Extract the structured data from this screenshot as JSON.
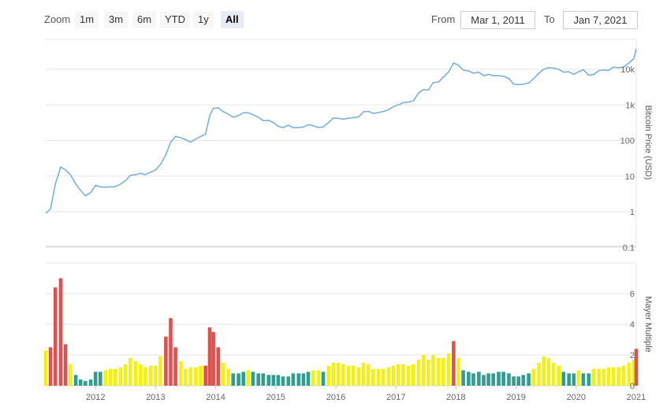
{
  "toolbar": {
    "zoom_label": "Zoom",
    "zoom_buttons": [
      "1m",
      "3m",
      "6m",
      "YTD",
      "1y",
      "All"
    ],
    "active_zoom": "All",
    "from_label": "From",
    "from_value": "Mar 1, 2011",
    "to_label": "To",
    "to_value": "Jan 7, 2021"
  },
  "colors": {
    "price_line": "#7cb0dc",
    "bar_red": "#d9534f",
    "bar_yellow": "#f4f10f",
    "bar_teal": "#2f9d8f",
    "grid": "#e6e6e6"
  },
  "chart_data": [
    {
      "type": "line",
      "ylabel": "Bitcoin Price (USD)",
      "yscale": "log",
      "y_ticks": [
        "0.1",
        "1",
        "10",
        "100",
        "1k",
        "10k"
      ],
      "ylim": [
        0.08,
        45000
      ],
      "xlim": [
        2011.17,
        2021.0
      ],
      "x_ticks": [
        "2012",
        "2013",
        "2014",
        "2015",
        "2016",
        "2017",
        "2018",
        "2019",
        "2020",
        "2021"
      ],
      "series": [
        {
          "points": [
            [
              2011.17,
              0.9
            ],
            [
              2011.25,
              1.2
            ],
            [
              2011.33,
              6
            ],
            [
              2011.42,
              18
            ],
            [
              2011.5,
              15
            ],
            [
              2011.58,
              11
            ],
            [
              2011.67,
              6
            ],
            [
              2011.75,
              4
            ],
            [
              2011.83,
              2.8
            ],
            [
              2011.92,
              3.5
            ],
            [
              2012.0,
              5.5
            ],
            [
              2012.08,
              5
            ],
            [
              2012.17,
              4.9
            ],
            [
              2012.25,
              5
            ],
            [
              2012.33,
              5.1
            ],
            [
              2012.42,
              6
            ],
            [
              2012.5,
              7.5
            ],
            [
              2012.58,
              10.5
            ],
            [
              2012.67,
              11
            ],
            [
              2012.75,
              12
            ],
            [
              2012.83,
              11
            ],
            [
              2012.92,
              13
            ],
            [
              2013.0,
              15
            ],
            [
              2013.08,
              21
            ],
            [
              2013.17,
              40
            ],
            [
              2013.25,
              90
            ],
            [
              2013.33,
              130
            ],
            [
              2013.42,
              120
            ],
            [
              2013.5,
              105
            ],
            [
              2013.58,
              90
            ],
            [
              2013.67,
              110
            ],
            [
              2013.75,
              130
            ],
            [
              2013.83,
              150
            ],
            [
              2013.9,
              500
            ],
            [
              2013.96,
              800
            ],
            [
              2014.04,
              830
            ],
            [
              2014.12,
              650
            ],
            [
              2014.21,
              550
            ],
            [
              2014.29,
              450
            ],
            [
              2014.38,
              500
            ],
            [
              2014.46,
              600
            ],
            [
              2014.54,
              600
            ],
            [
              2014.62,
              530
            ],
            [
              2014.71,
              450
            ],
            [
              2014.79,
              360
            ],
            [
              2014.88,
              370
            ],
            [
              2014.96,
              320
            ],
            [
              2015.04,
              250
            ],
            [
              2015.12,
              230
            ],
            [
              2015.21,
              270
            ],
            [
              2015.29,
              230
            ],
            [
              2015.38,
              230
            ],
            [
              2015.46,
              240
            ],
            [
              2015.54,
              280
            ],
            [
              2015.62,
              260
            ],
            [
              2015.71,
              230
            ],
            [
              2015.79,
              240
            ],
            [
              2015.88,
              320
            ],
            [
              2015.96,
              430
            ],
            [
              2016.04,
              420
            ],
            [
              2016.12,
              400
            ],
            [
              2016.21,
              420
            ],
            [
              2016.29,
              440
            ],
            [
              2016.38,
              460
            ],
            [
              2016.46,
              640
            ],
            [
              2016.54,
              660
            ],
            [
              2016.62,
              580
            ],
            [
              2016.71,
              610
            ],
            [
              2016.79,
              650
            ],
            [
              2016.88,
              740
            ],
            [
              2016.96,
              900
            ],
            [
              2017.04,
              1000
            ],
            [
              2017.12,
              1150
            ],
            [
              2017.21,
              1200
            ],
            [
              2017.29,
              1300
            ],
            [
              2017.38,
              2200
            ],
            [
              2017.46,
              2700
            ],
            [
              2017.54,
              2600
            ],
            [
              2017.62,
              4200
            ],
            [
              2017.71,
              4400
            ],
            [
              2017.79,
              6000
            ],
            [
              2017.88,
              8500
            ],
            [
              2017.96,
              15000
            ],
            [
              2018.04,
              13000
            ],
            [
              2018.12,
              9500
            ],
            [
              2018.21,
              9000
            ],
            [
              2018.29,
              7800
            ],
            [
              2018.38,
              8300
            ],
            [
              2018.46,
              6600
            ],
            [
              2018.54,
              7200
            ],
            [
              2018.62,
              6600
            ],
            [
              2018.71,
              6600
            ],
            [
              2018.79,
              6400
            ],
            [
              2018.88,
              5500
            ],
            [
              2018.96,
              3800
            ],
            [
              2019.04,
              3700
            ],
            [
              2019.12,
              3800
            ],
            [
              2019.21,
              4100
            ],
            [
              2019.29,
              5400
            ],
            [
              2019.38,
              7800
            ],
            [
              2019.46,
              10000
            ],
            [
              2019.54,
              11000
            ],
            [
              2019.62,
              10800
            ],
            [
              2019.71,
              10000
            ],
            [
              2019.79,
              8300
            ],
            [
              2019.88,
              8500
            ],
            [
              2019.96,
              7200
            ],
            [
              2020.04,
              8500
            ],
            [
              2020.12,
              9700
            ],
            [
              2020.21,
              6800
            ],
            [
              2020.29,
              7100
            ],
            [
              2020.38,
              9200
            ],
            [
              2020.46,
              9500
            ],
            [
              2020.54,
              9300
            ],
            [
              2020.62,
              11500
            ],
            [
              2020.71,
              11000
            ],
            [
              2020.79,
              11500
            ],
            [
              2020.88,
              15000
            ],
            [
              2020.96,
              20000
            ],
            [
              2021.0,
              37000
            ]
          ]
        }
      ]
    },
    {
      "type": "bar",
      "ylabel": "Mayer Multiple",
      "ylim": [
        0,
        8
      ],
      "y_ticks": [
        0,
        2,
        4,
        6
      ],
      "xlim": [
        2011.17,
        2021.0
      ],
      "bar_categories": {
        "r": "red",
        "y": "yellow",
        "t": "teal"
      },
      "bars": [
        [
          2011.17,
          2.3,
          "y"
        ],
        [
          2011.25,
          2.5,
          "r"
        ],
        [
          2011.33,
          6.4,
          "r"
        ],
        [
          2011.42,
          7.0,
          "r"
        ],
        [
          2011.5,
          2.7,
          "r"
        ],
        [
          2011.58,
          1.4,
          "y"
        ],
        [
          2011.67,
          0.7,
          "t"
        ],
        [
          2011.75,
          0.4,
          "t"
        ],
        [
          2011.83,
          0.3,
          "t"
        ],
        [
          2011.92,
          0.4,
          "t"
        ],
        [
          2012.0,
          0.9,
          "t"
        ],
        [
          2012.08,
          0.9,
          "t"
        ],
        [
          2012.17,
          1.0,
          "y"
        ],
        [
          2012.25,
          1.1,
          "y"
        ],
        [
          2012.33,
          1.1,
          "y"
        ],
        [
          2012.42,
          1.2,
          "y"
        ],
        [
          2012.5,
          1.4,
          "y"
        ],
        [
          2012.58,
          1.8,
          "y"
        ],
        [
          2012.67,
          1.6,
          "y"
        ],
        [
          2012.75,
          1.4,
          "y"
        ],
        [
          2012.83,
          1.2,
          "y"
        ],
        [
          2012.92,
          1.3,
          "y"
        ],
        [
          2013.0,
          1.3,
          "y"
        ],
        [
          2013.08,
          1.9,
          "y"
        ],
        [
          2013.17,
          3.2,
          "r"
        ],
        [
          2013.25,
          4.4,
          "r"
        ],
        [
          2013.33,
          2.5,
          "r"
        ],
        [
          2013.42,
          1.6,
          "y"
        ],
        [
          2013.5,
          1.1,
          "y"
        ],
        [
          2013.58,
          1.2,
          "y"
        ],
        [
          2013.67,
          1.2,
          "y"
        ],
        [
          2013.75,
          1.3,
          "y"
        ],
        [
          2013.83,
          1.3,
          "r"
        ],
        [
          2013.9,
          3.8,
          "r"
        ],
        [
          2013.96,
          3.5,
          "r"
        ],
        [
          2014.04,
          2.5,
          "r"
        ],
        [
          2014.12,
          1.5,
          "y"
        ],
        [
          2014.21,
          1.1,
          "y"
        ],
        [
          2014.29,
          0.8,
          "t"
        ],
        [
          2014.38,
          0.8,
          "t"
        ],
        [
          2014.46,
          0.9,
          "t"
        ],
        [
          2014.54,
          1.0,
          "y"
        ],
        [
          2014.62,
          0.9,
          "t"
        ],
        [
          2014.71,
          0.8,
          "t"
        ],
        [
          2014.79,
          0.8,
          "t"
        ],
        [
          2014.88,
          0.7,
          "t"
        ],
        [
          2014.96,
          0.7,
          "t"
        ],
        [
          2015.04,
          0.7,
          "t"
        ],
        [
          2015.12,
          0.6,
          "t"
        ],
        [
          2015.21,
          0.6,
          "t"
        ],
        [
          2015.29,
          0.8,
          "t"
        ],
        [
          2015.38,
          0.8,
          "t"
        ],
        [
          2015.46,
          0.8,
          "t"
        ],
        [
          2015.54,
          0.9,
          "t"
        ],
        [
          2015.62,
          1.0,
          "y"
        ],
        [
          2015.71,
          1.0,
          "y"
        ],
        [
          2015.79,
          0.9,
          "t"
        ],
        [
          2015.88,
          1.3,
          "y"
        ],
        [
          2015.96,
          1.5,
          "y"
        ],
        [
          2016.04,
          1.5,
          "y"
        ],
        [
          2016.12,
          1.4,
          "y"
        ],
        [
          2016.21,
          1.3,
          "y"
        ],
        [
          2016.29,
          1.3,
          "y"
        ],
        [
          2016.38,
          1.2,
          "y"
        ],
        [
          2016.46,
          1.5,
          "y"
        ],
        [
          2016.54,
          1.4,
          "y"
        ],
        [
          2016.62,
          1.1,
          "y"
        ],
        [
          2016.71,
          1.1,
          "y"
        ],
        [
          2016.79,
          1.1,
          "y"
        ],
        [
          2016.88,
          1.2,
          "y"
        ],
        [
          2016.96,
          1.3,
          "y"
        ],
        [
          2017.04,
          1.4,
          "y"
        ],
        [
          2017.12,
          1.4,
          "y"
        ],
        [
          2017.21,
          1.3,
          "y"
        ],
        [
          2017.29,
          1.4,
          "y"
        ],
        [
          2017.38,
          1.7,
          "y"
        ],
        [
          2017.46,
          2.0,
          "y"
        ],
        [
          2017.54,
          1.7,
          "y"
        ],
        [
          2017.62,
          2.0,
          "y"
        ],
        [
          2017.71,
          1.8,
          "y"
        ],
        [
          2017.79,
          1.8,
          "y"
        ],
        [
          2017.88,
          2.1,
          "y"
        ],
        [
          2017.96,
          2.9,
          "r"
        ],
        [
          2018.04,
          1.8,
          "y"
        ],
        [
          2018.12,
          1.0,
          "t"
        ],
        [
          2018.21,
          0.9,
          "t"
        ],
        [
          2018.29,
          0.8,
          "t"
        ],
        [
          2018.38,
          0.9,
          "t"
        ],
        [
          2018.46,
          0.7,
          "t"
        ],
        [
          2018.54,
          0.8,
          "t"
        ],
        [
          2018.62,
          0.8,
          "t"
        ],
        [
          2018.71,
          0.9,
          "t"
        ],
        [
          2018.79,
          0.9,
          "t"
        ],
        [
          2018.88,
          0.8,
          "t"
        ],
        [
          2018.96,
          0.6,
          "t"
        ],
        [
          2019.04,
          0.6,
          "t"
        ],
        [
          2019.12,
          0.7,
          "t"
        ],
        [
          2019.21,
          0.8,
          "t"
        ],
        [
          2019.29,
          1.1,
          "y"
        ],
        [
          2019.38,
          1.5,
          "y"
        ],
        [
          2019.46,
          1.9,
          "y"
        ],
        [
          2019.54,
          1.8,
          "y"
        ],
        [
          2019.62,
          1.5,
          "y"
        ],
        [
          2019.71,
          1.3,
          "y"
        ],
        [
          2019.79,
          0.9,
          "t"
        ],
        [
          2019.88,
          0.8,
          "t"
        ],
        [
          2019.96,
          0.8,
          "t"
        ],
        [
          2020.04,
          1.0,
          "y"
        ],
        [
          2020.12,
          0.8,
          "t"
        ],
        [
          2020.21,
          0.8,
          "t"
        ],
        [
          2020.29,
          1.1,
          "y"
        ],
        [
          2020.38,
          1.1,
          "y"
        ],
        [
          2020.46,
          1.1,
          "y"
        ],
        [
          2020.54,
          1.2,
          "y"
        ],
        [
          2020.62,
          1.2,
          "y"
        ],
        [
          2020.71,
          1.2,
          "y"
        ],
        [
          2020.79,
          1.3,
          "y"
        ],
        [
          2020.88,
          1.5,
          "y"
        ],
        [
          2020.96,
          1.7,
          "y"
        ],
        [
          2021.0,
          2.4,
          "r"
        ]
      ]
    }
  ]
}
